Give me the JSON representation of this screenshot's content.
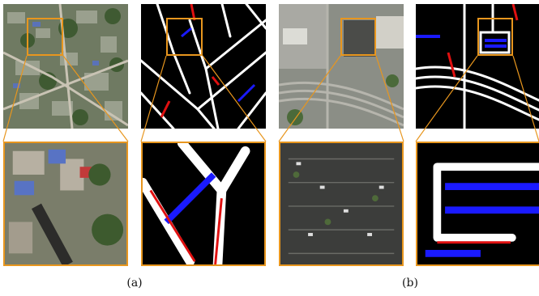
{
  "captions": {
    "a": "(a)",
    "b": "(b)"
  },
  "colors": {
    "highlight": "#e8961e",
    "road_true_positive": "#ffffff",
    "road_false_negative": "#1a1aff",
    "road_false_positive": "#e01010",
    "mask_background": "#000000"
  },
  "panels": [
    {
      "name": "aerial-residential-overview"
    },
    {
      "name": "road-mask-residential-overview"
    },
    {
      "name": "aerial-residential-zoom"
    },
    {
      "name": "road-mask-residential-zoom"
    },
    {
      "name": "aerial-highway-overview"
    },
    {
      "name": "road-mask-highway-overview"
    },
    {
      "name": "aerial-parking-lot-zoom"
    },
    {
      "name": "road-mask-parking-lot-zoom"
    }
  ]
}
